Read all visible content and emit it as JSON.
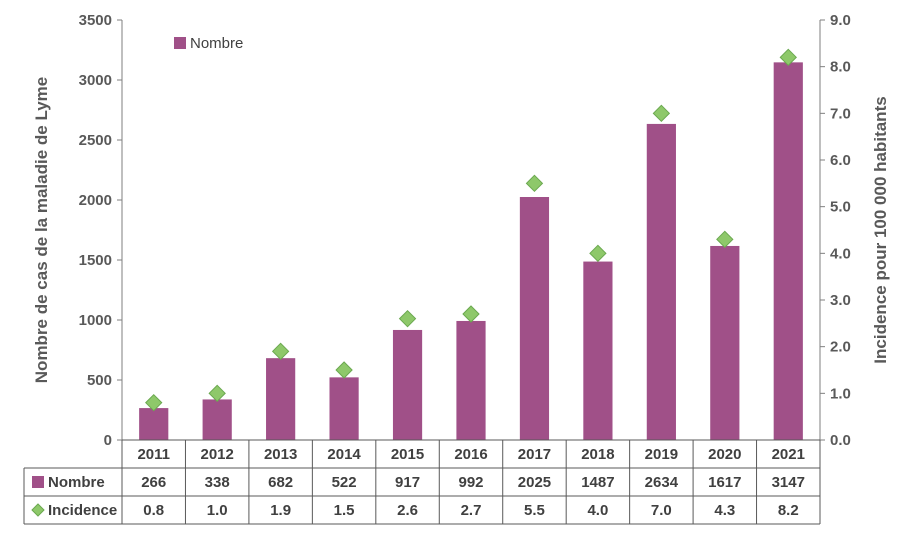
{
  "chart_data": {
    "type": "bar",
    "categories": [
      "2011",
      "2012",
      "2013",
      "2014",
      "2015",
      "2016",
      "2017",
      "2018",
      "2019",
      "2020",
      "2021"
    ],
    "series": [
      {
        "name": "Nombre",
        "type": "bar",
        "axis": "left",
        "color": "#a05088",
        "values": [
          266,
          338,
          682,
          522,
          917,
          992,
          2025,
          1487,
          2634,
          1617,
          3147
        ]
      },
      {
        "name": "Incidence",
        "type": "scatter",
        "marker": "diamond",
        "axis": "right",
        "color": "#8ec86a",
        "values": [
          0.8,
          1.0,
          1.9,
          1.5,
          2.6,
          2.7,
          5.5,
          4.0,
          7.0,
          4.3,
          8.2
        ]
      }
    ],
    "ylabel_left": "Nombre de cas de la maladie de Lyme",
    "ylabel_right": "Incidence pour 100 000 habitants",
    "ylim_left": [
      0,
      3500
    ],
    "yticks_left": [
      "0",
      "500",
      "1000",
      "1500",
      "2000",
      "2500",
      "3000",
      "3500"
    ],
    "ylim_right": [
      0,
      9
    ],
    "yticks_right": [
      "0.0",
      "1.0",
      "2.0",
      "3.0",
      "4.0",
      "5.0",
      "6.0",
      "7.0",
      "8.0",
      "9.0"
    ],
    "legend": {
      "position": "top-left",
      "label": "Nombre"
    },
    "data_table": {
      "rows": [
        {
          "label": "Nombre",
          "marker": "square",
          "values": [
            "266",
            "338",
            "682",
            "522",
            "917",
            "992",
            "2025",
            "1487",
            "2634",
            "1617",
            "3147"
          ]
        },
        {
          "label": "Incidence",
          "marker": "diamond",
          "values": [
            "0.8",
            "1.0",
            "1.9",
            "1.5",
            "2.6",
            "2.7",
            "5.5",
            "4.0",
            "7.0",
            "4.3",
            "8.2"
          ]
        }
      ]
    },
    "grid": false
  }
}
